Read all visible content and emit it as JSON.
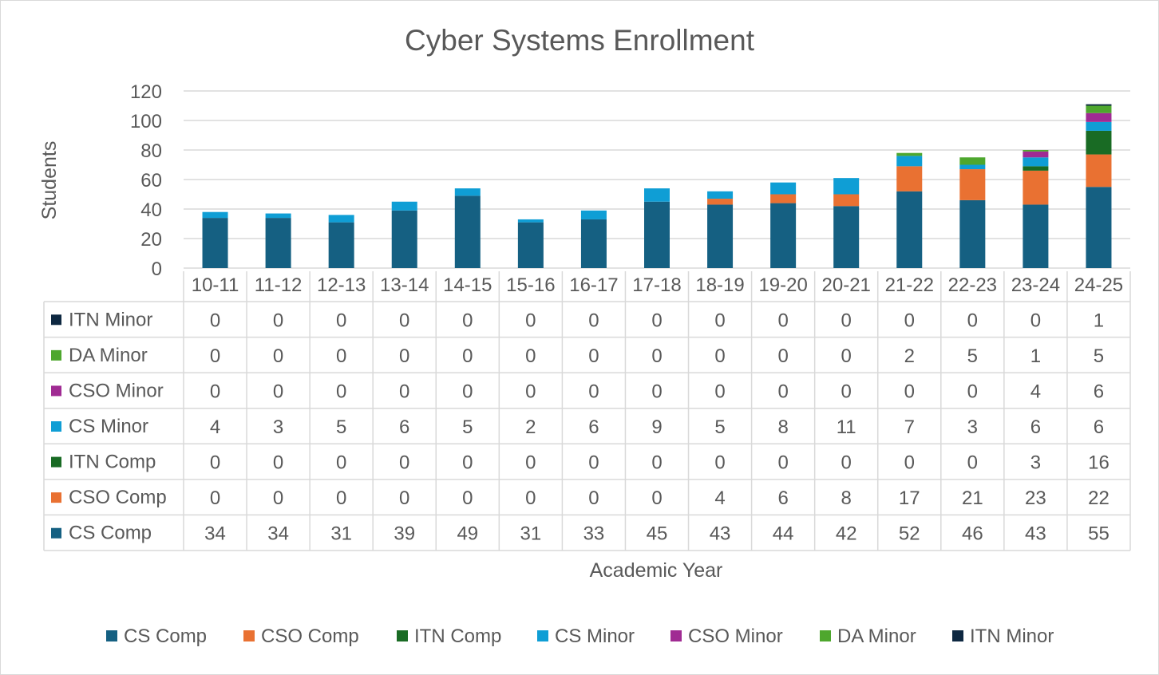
{
  "chart_data": {
    "type": "bar",
    "stacked": true,
    "title": "Cyber Systems Enrollment",
    "xlabel": "Academic Year",
    "ylabel": "Students",
    "ylim": [
      0,
      120
    ],
    "yticks": [
      0,
      20,
      40,
      60,
      80,
      100,
      120
    ],
    "grid": true,
    "legend_position": "bottom",
    "data_table": true,
    "categories": [
      "10-11",
      "11-12",
      "12-13",
      "13-14",
      "14-15",
      "15-16",
      "16-17",
      "17-18",
      "18-19",
      "19-20",
      "20-21",
      "21-22",
      "22-23",
      "23-24",
      "24-25"
    ],
    "series": [
      {
        "name": "CS Comp",
        "color": "#156082",
        "values": [
          34,
          34,
          31,
          39,
          49,
          31,
          33,
          45,
          43,
          44,
          42,
          52,
          46,
          43,
          55
        ]
      },
      {
        "name": "CSO Comp",
        "color": "#E97132",
        "values": [
          0,
          0,
          0,
          0,
          0,
          0,
          0,
          0,
          4,
          6,
          8,
          17,
          21,
          23,
          22
        ]
      },
      {
        "name": "ITN Comp",
        "color": "#196B24",
        "values": [
          0,
          0,
          0,
          0,
          0,
          0,
          0,
          0,
          0,
          0,
          0,
          0,
          0,
          3,
          16
        ]
      },
      {
        "name": "CS Minor",
        "color": "#0F9ED5",
        "values": [
          4,
          3,
          5,
          6,
          5,
          2,
          6,
          9,
          5,
          8,
          11,
          7,
          3,
          6,
          6
        ]
      },
      {
        "name": "CSO Minor",
        "color": "#A02B93",
        "values": [
          0,
          0,
          0,
          0,
          0,
          0,
          0,
          0,
          0,
          0,
          0,
          0,
          0,
          4,
          6
        ]
      },
      {
        "name": "DA Minor",
        "color": "#4EA72E",
        "values": [
          0,
          0,
          0,
          0,
          0,
          0,
          0,
          0,
          0,
          0,
          0,
          2,
          5,
          1,
          5
        ]
      },
      {
        "name": "ITN Minor",
        "color": "#0E2841",
        "values": [
          0,
          0,
          0,
          0,
          0,
          0,
          0,
          0,
          0,
          0,
          0,
          0,
          0,
          0,
          1
        ]
      }
    ]
  }
}
